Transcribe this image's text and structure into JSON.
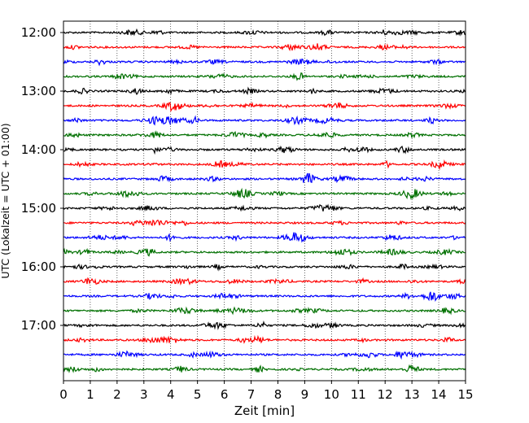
{
  "chart_data": {
    "type": "line",
    "title": "",
    "xlabel": "Zeit  [min]",
    "ylabel": "UTC (Lokalzeit = UTC + 01:00)",
    "xlim": [
      0,
      15
    ],
    "x_ticks": [
      "0",
      "1",
      "2",
      "3",
      "4",
      "5",
      "6",
      "7",
      "8",
      "9",
      "10",
      "11",
      "12",
      "13",
      "14",
      "15"
    ],
    "y_ticks": [
      "12:00",
      "13:00",
      "14:00",
      "15:00",
      "16:00",
      "17:00"
    ],
    "grid": "vertical dotted lines at each minute",
    "trace_interval_minutes": 15,
    "trace_start": "12:00",
    "trace_count": 24,
    "trace_colors": [
      "#000000",
      "#ff0000",
      "#0000ff",
      "#007000"
    ]
  }
}
